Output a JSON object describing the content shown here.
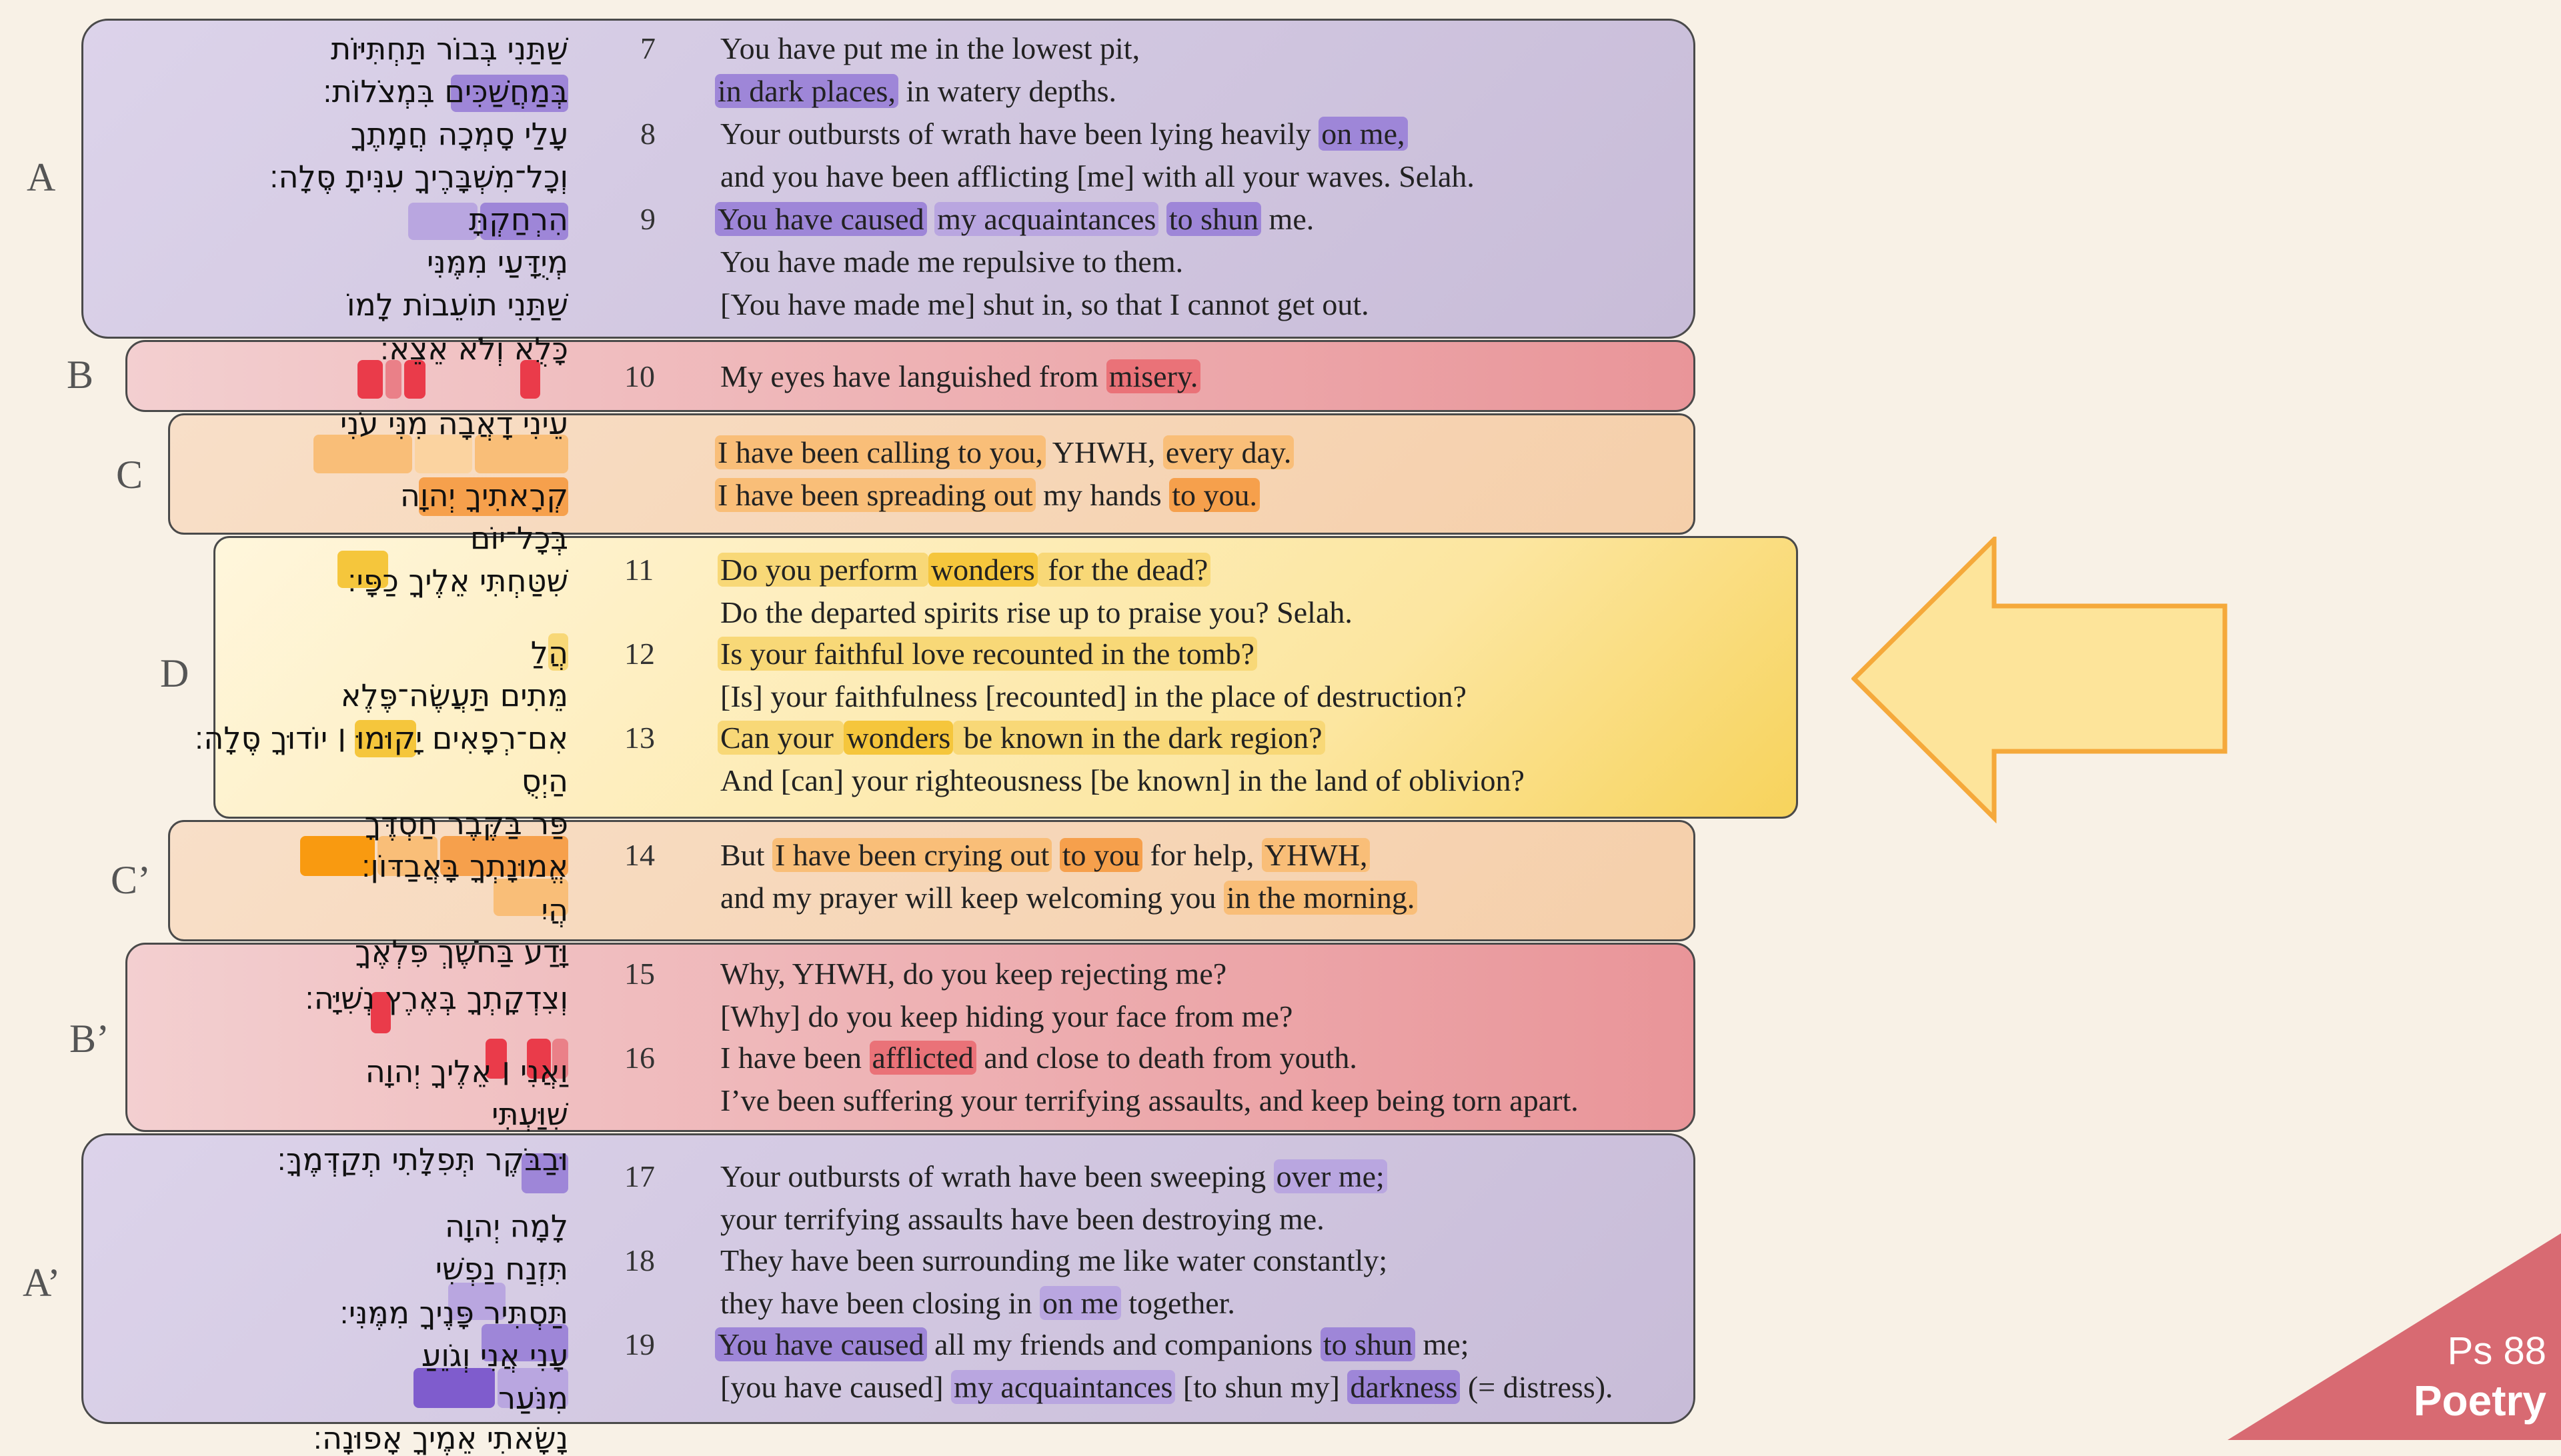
{
  "sections": {
    "A": "A",
    "B": "B",
    "C": "C",
    "D": "D",
    "C2": "C’",
    "B2": "B’",
    "A2": "A’"
  },
  "verses": {
    "v7": "7",
    "v8": "8",
    "v9": "9",
    "v10": "10",
    "v11": "11",
    "v12": "12",
    "v13": "13",
    "v14": "14",
    "v15": "15",
    "v16": "16",
    "v17": "17",
    "v18": "18",
    "v19": "19"
  },
  "hebrew": [
    "שַׁתַּנִי בְּבוֹר תַּחְתִּיּוֹת",
    "בְּמַחֲשַׁכִּים בִּמְצֹלוֹת׃",
    "עָלַי סָמְכָה חֲמָתֶךָ",
    "וְכָל־מִשְׁבָּרֶיךָ עִנִּיתָ סֶּלָה׃",
    "הִרְחַקְתָּ",
    "מְיֻדָּעַי מִמֶּנִּי",
    "שַׁתַּנִי תוֹעֵבוֹת לָמוֹ",
    "כָּלֻא וְלֹא אֵצֵא׃",
    "עֵינִי דָאֲבָה מִנִּי עֹנִי",
    "קְרָאתִיךָ יְהוָה",
    "בְּכָל־יוֹם",
    "שִׁטַּחְתִּי אֵלֶיךָ כַפָּי׃",
    "הֲלַ",
    "מֵּתִים תַּעֲשֶׂה־פֶּלֶא",
    "אִם־רְפָאִים יָקוּמוּ ׀ יוֹדוּךָ סֶּלָה׃",
    "הַיְסֻ",
    "פַּר בַּקֶּבֶר חַסְדֶּךָ",
    "אֱמוּנָתְךָ בָּאֲבַדּוֹן׃",
    "הֲיִ",
    "וָּדַע בַּחֹשֶׁךְ פִּלְאֶךָ",
    "וְצִדְקָתְךָ בְּאֶרֶץ נְשִׁיָּה׃",
    "וַאֲנִי ׀ אֵלֶיךָ יְהוָה",
    "שִׁוַּעְתִּי",
    "וּבַבֹּקֶר תְּפִלָּתִי תְקַדְּמֶךָּ׃",
    "לָמָה יְהוָה",
    "תִּזְנַח נַפְשִׁי",
    "תַּסְתִּיר פָּנֶיךָ מִמֶּנִּי׃",
    "עָנִי אֲנִי וְגֹוֵעַ",
    "מִנֹּעַר",
    "נָשָׂאתִי אֵמֶיךָ אָפוּנָה׃"
  ],
  "english": {
    "l7a": "You have put me in the lowest pit,",
    "l7b1": "in dark places,",
    "l7b2": " in watery depths.",
    "l8a1": "Your outbursts of wrath have been lying heavily ",
    "l8a2": "on me,",
    "l8b": "and you have been afflicting [me] with all your waves. Selah.",
    "l9a1": "You have caused",
    "l9a2": "my acquaintances",
    "l9a3": "to shun",
    "l9a4": " me.",
    "l9b": "You have made me repulsive to them.",
    "l9c": "[You have made me] shut in, so that I cannot get out.",
    "l10a": "My eyes have languished from ",
    "l10b": "misery.",
    "lCa1": "I have been calling to you,",
    "lCa2": " YHWH, ",
    "lCa3": "every day.",
    "lCb1": "I have been spreading out",
    "lCb2": " my hands ",
    "lCb3": "to you.",
    "l11a1": "Do you perform ",
    "l11a2": "wonders",
    "l11a3": " for the dead?",
    "l11b": "Do the departed spirits rise up to praise you? Selah.",
    "l12a": "Is your faithful love recounted in the tomb?",
    "l12b": "[Is] your faithfulness [recounted] in the place of destruction?",
    "l13a1": "Can your ",
    "l13a2": "wonders",
    "l13a3": " be known in the dark region?",
    "l13b": "And [can] your righteousness [be known] in the land of oblivion?",
    "l14a1": "But ",
    "l14a2": "I have been crying out",
    "l14a3": "to you",
    "l14a4": " for help, ",
    "l14a5": "YHWH,",
    "l14b1": "and my prayer will keep welcoming you ",
    "l14b2": "in the morning.",
    "l15a": "Why, YHWH, do you keep rejecting me?",
    "l15b": "[Why] do you keep hiding your face from me?",
    "l16a1": "I have been ",
    "l16a2": "afflicted",
    "l16a3": " and close to death from youth.",
    "l16b": "I’ve been suffering your terrifying assaults, and keep being torn apart.",
    "l17a1": "Your outbursts of wrath have been sweeping ",
    "l17a2": "over me;",
    "l17b": "your terrifying assaults have been destroying me.",
    "l18a": "They have been surrounding me like water constantly;",
    "l18b1": "they have been closing in ",
    "l18b2": "on me",
    "l18b3": " together.",
    "l19a1": "You have caused",
    "l19a2": " all my friends and companions ",
    "l19a3": "to shun",
    "l19a4": " me;",
    "l19b1": "[you have caused] ",
    "l19b2": "my acquaintances",
    "l19b3": " [to shun my] ",
    "l19b4": "darkness",
    "l19b5": " (= distress)."
  },
  "corner": {
    "reference": "Ps 88",
    "genre": "Poetry"
  },
  "colors": {
    "background": "#f8f1e6",
    "purple": "#9e86d8",
    "red": "#ea7278",
    "orange": "#f6a04c",
    "yellow": "#f5c63c",
    "corner": "#d86a72",
    "arrow_fill": "#fde49a",
    "arrow_stroke": "#f5a93b"
  }
}
